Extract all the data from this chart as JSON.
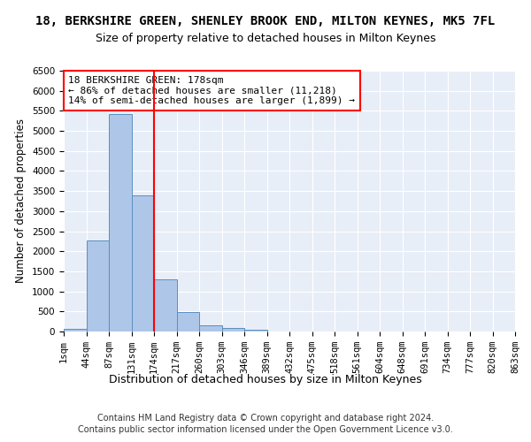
{
  "title": "18, BERKSHIRE GREEN, SHENLEY BROOK END, MILTON KEYNES, MK5 7FL",
  "subtitle": "Size of property relative to detached houses in Milton Keynes",
  "xlabel": "Distribution of detached houses by size in Milton Keynes",
  "ylabel": "Number of detached properties",
  "footer_line1": "Contains HM Land Registry data © Crown copyright and database right 2024.",
  "footer_line2": "Contains public sector information licensed under the Open Government Licence v3.0.",
  "bin_labels": [
    "1sqm",
    "44sqm",
    "87sqm",
    "131sqm",
    "174sqm",
    "217sqm",
    "260sqm",
    "303sqm",
    "346sqm",
    "389sqm",
    "432sqm",
    "475sqm",
    "518sqm",
    "561sqm",
    "604sqm",
    "648sqm",
    "691sqm",
    "734sqm",
    "777sqm",
    "820sqm",
    "863sqm"
  ],
  "bar_values": [
    75,
    2280,
    5430,
    3400,
    1310,
    480,
    160,
    80,
    50,
    0,
    0,
    0,
    0,
    0,
    0,
    0,
    0,
    0,
    0,
    0
  ],
  "bar_color": "#aec6e8",
  "bar_edge_color": "#5a8fc0",
  "vline_x": 4,
  "vline_color": "red",
  "annotation_text": "18 BERKSHIRE GREEN: 178sqm\n← 86% of detached houses are smaller (11,218)\n14% of semi-detached houses are larger (1,899) →",
  "annotation_box_color": "white",
  "annotation_box_edge_color": "red",
  "annotation_fontsize": 8,
  "ylim": [
    0,
    6500
  ],
  "yticks": [
    0,
    500,
    1000,
    1500,
    2000,
    2500,
    3000,
    3500,
    4000,
    4500,
    5000,
    5500,
    6000,
    6500
  ],
  "title_fontsize": 10,
  "subtitle_fontsize": 9,
  "xlabel_fontsize": 9,
  "ylabel_fontsize": 8.5,
  "tick_fontsize": 7.5,
  "background_color": "#e8eef7",
  "figure_background": "#ffffff"
}
